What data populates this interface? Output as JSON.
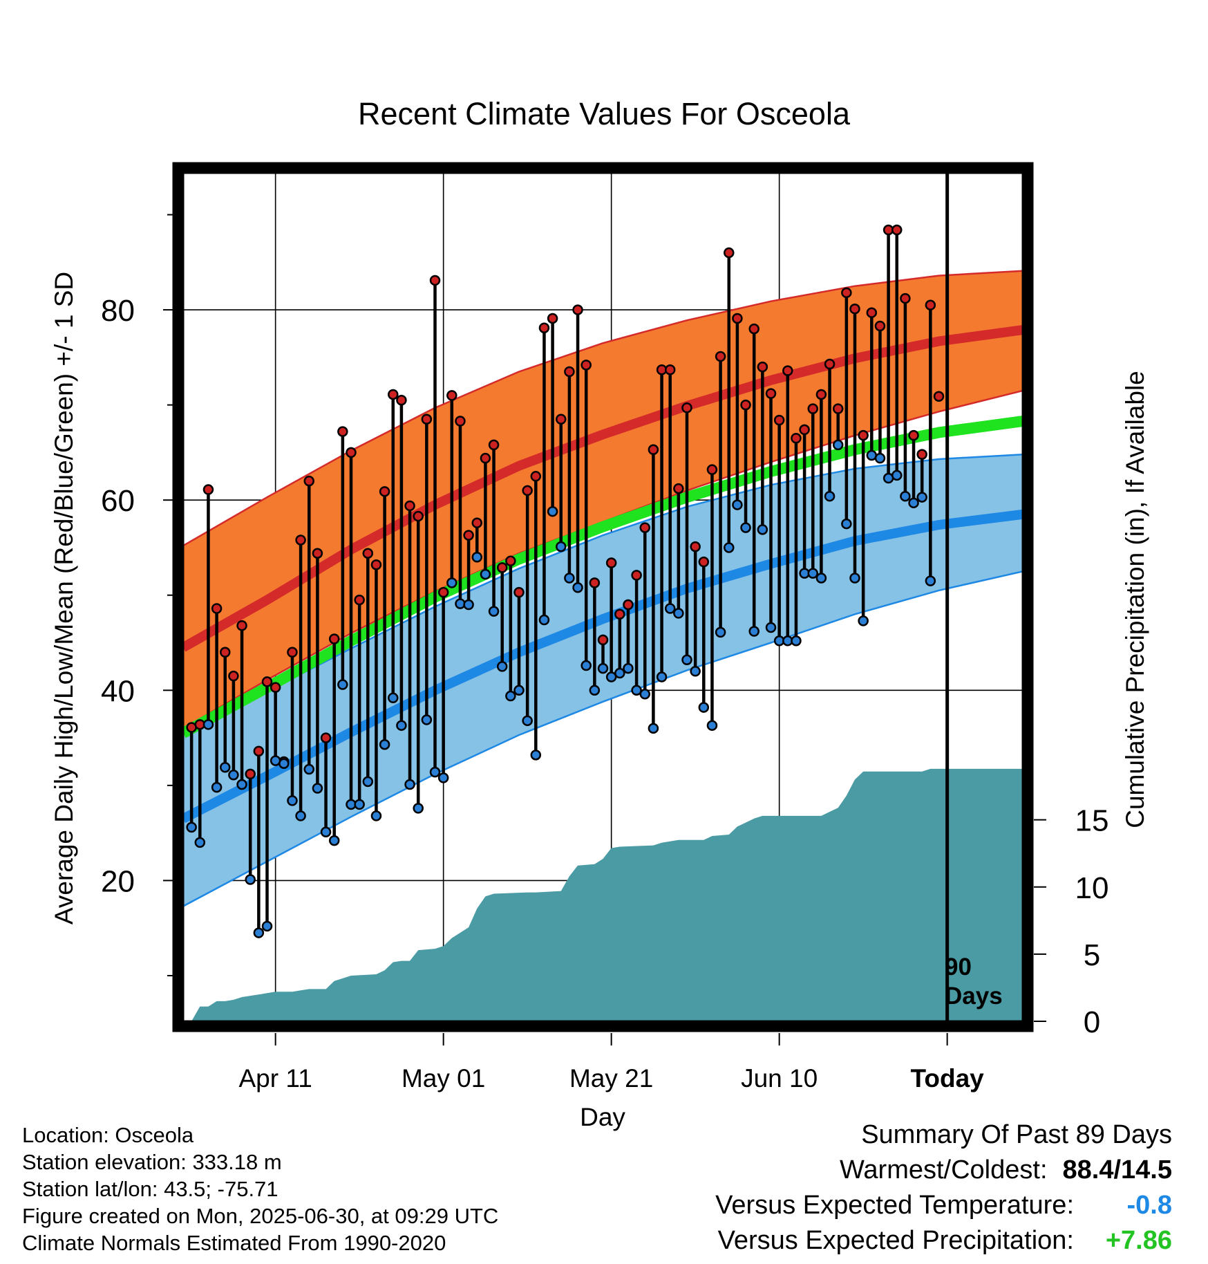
{
  "colors": {
    "high_band": "#f47a30",
    "high_line": "#d42a2a",
    "low_band": "#86c1e6",
    "low_line": "#1e88e5",
    "band_edge_high": "#d42a2a",
    "band_edge_low": "#1e88e5",
    "mean_line": "#1ee31e",
    "precip_fill": "#4a9ba4",
    "high_dot": "#cc2222",
    "low_dot": "#2b7fd4",
    "precip_value_color": "#22c322",
    "temp_value_color": "#1e88e5"
  },
  "chart_data": {
    "type": "line",
    "title": "Recent Climate Values For Osceola",
    "xlabel": "Day",
    "ylabel": "Average Daily High/Low/Mean (Red/Blue/Green) +/- 1 SD",
    "ylabel_right": "Cumulative Precipitation (in), If Available",
    "x_tick_labels": [
      {
        "label": "Apr 11",
        "day": 11
      },
      {
        "label": "May 01",
        "day": 31
      },
      {
        "label": "May 21",
        "day": 51
      },
      {
        "label": "Jun 10",
        "day": 71
      },
      {
        "label": "Today",
        "day": 91
      }
    ],
    "x_range": [
      0,
      100
    ],
    "today_day": 91,
    "today_annotation": [
      "90",
      "Days"
    ],
    "y_range": [
      5.2,
      94.4
    ],
    "y_ticks": [
      20,
      40,
      60,
      80
    ],
    "y_tick_labels": [
      "20",
      "40",
      "60",
      "80"
    ],
    "y_minor_ticks": [
      10,
      30,
      50,
      70,
      90
    ],
    "y2_range": [
      0,
      19
    ],
    "y2_ticks": [
      0,
      5,
      10,
      15
    ],
    "y2_tick_labels": [
      "0",
      "5",
      "10",
      "15"
    ],
    "normals": {
      "days": [
        0,
        10,
        20,
        30,
        40,
        50,
        60,
        70,
        80,
        90,
        100
      ],
      "high_mean": [
        44.5,
        49.5,
        54.8,
        59.5,
        63.6,
        66.9,
        69.9,
        72.6,
        74.9,
        76.7,
        77.9
      ],
      "high_upper": [
        55.2,
        60.3,
        65.2,
        69.7,
        73.5,
        76.5,
        78.9,
        80.9,
        82.5,
        83.6,
        84.1
      ],
      "high_lower": [
        36.0,
        41.1,
        46.0,
        50.4,
        54.4,
        57.7,
        61.0,
        64.0,
        66.8,
        69.3,
        71.5
      ],
      "low_mean": [
        26.5,
        31.0,
        35.6,
        40.0,
        44.0,
        47.5,
        50.7,
        53.3,
        55.7,
        57.4,
        58.5
      ],
      "low_upper": [
        35.6,
        39.9,
        44.4,
        48.8,
        52.8,
        56.3,
        59.3,
        61.6,
        63.3,
        64.3,
        64.8
      ],
      "low_lower": [
        17.3,
        22.0,
        26.7,
        31.2,
        35.3,
        38.8,
        42.1,
        45.0,
        48.0,
        50.5,
        52.5
      ],
      "mean_temp": [
        35.5,
        40.3,
        45.2,
        49.8,
        53.8,
        57.2,
        60.3,
        63.0,
        65.3,
        67.1,
        68.3
      ]
    },
    "series": [
      {
        "name": "High",
        "values": [
          36.1,
          36.4,
          61.1,
          48.6,
          44.0,
          41.5,
          46.8,
          31.2,
          33.6,
          40.9,
          40.3,
          32.5,
          44.0,
          55.8,
          62.0,
          54.4,
          35.0,
          45.4,
          67.2,
          65.0,
          49.5,
          54.4,
          53.2,
          60.9,
          71.1,
          70.5,
          59.4,
          58.3,
          68.5,
          83.1,
          50.3,
          71.0,
          68.3,
          56.3,
          57.6,
          64.4,
          65.8,
          52.9,
          53.6,
          50.3,
          61.0,
          62.5,
          78.1,
          79.1,
          68.5,
          73.5,
          80.0,
          74.2,
          51.3,
          45.3,
          53.4,
          48.0,
          49.0,
          52.1,
          57.1,
          65.3,
          73.7,
          73.7,
          61.2,
          69.7,
          55.1,
          53.5,
          63.2,
          75.1,
          86.0,
          79.1,
          70.0,
          78.0,
          74.0,
          71.2,
          68.4,
          73.6,
          66.5,
          67.4,
          69.6,
          71.1,
          74.3,
          69.6,
          81.8,
          80.1,
          66.8,
          79.7,
          78.3,
          88.4,
          88.4,
          81.2,
          66.8,
          64.8,
          80.5,
          70.9
        ],
        "color": "#cc2222"
      },
      {
        "name": "Low",
        "values": [
          25.6,
          24.0,
          36.4,
          29.8,
          31.9,
          31.1,
          30.1,
          20.1,
          14.5,
          15.2,
          32.6,
          32.3,
          28.4,
          26.8,
          31.7,
          29.7,
          25.1,
          24.2,
          40.6,
          28.0,
          28.0,
          30.4,
          26.8,
          34.3,
          39.2,
          36.3,
          30.1,
          27.6,
          36.9,
          31.4,
          30.8,
          51.3,
          49.1,
          49.0,
          54.0,
          52.2,
          48.3,
          42.5,
          39.4,
          40.0,
          36.8,
          33.2,
          47.4,
          58.8,
          55.1,
          51.8,
          50.8,
          42.6,
          40.0,
          42.3,
          41.4,
          41.8,
          42.3,
          40.0,
          39.6,
          36.0,
          41.4,
          48.6,
          48.1,
          43.2,
          42.0,
          38.2,
          36.3,
          46.1,
          55.0,
          59.5,
          57.1,
          46.2,
          56.9,
          46.6,
          45.2,
          45.2,
          45.2,
          52.3,
          52.3,
          51.8,
          60.4,
          65.8,
          57.5,
          51.8,
          47.3,
          64.7,
          64.4,
          62.3,
          62.6,
          60.4,
          59.7,
          60.3,
          51.5
        ],
        "color": "#2b7fd4"
      },
      {
        "name": "Cumulative Precipitation",
        "points": [
          [
            1,
            0.0
          ],
          [
            2,
            1.1
          ],
          [
            3,
            1.1
          ],
          [
            4,
            1.5
          ],
          [
            5,
            1.5
          ],
          [
            6,
            1.6
          ],
          [
            7,
            1.8
          ],
          [
            8,
            1.9
          ],
          [
            9,
            2.0
          ],
          [
            10,
            2.1
          ],
          [
            11,
            2.2
          ],
          [
            13,
            2.2
          ],
          [
            14,
            2.3
          ],
          [
            15,
            2.4
          ],
          [
            17,
            2.4
          ],
          [
            18,
            3.0
          ],
          [
            19,
            3.2
          ],
          [
            20,
            3.4
          ],
          [
            23,
            3.5
          ],
          [
            24,
            3.8
          ],
          [
            25,
            4.4
          ],
          [
            26,
            4.5
          ],
          [
            27,
            4.5
          ],
          [
            28,
            5.3
          ],
          [
            30,
            5.4
          ],
          [
            31,
            5.6
          ],
          [
            32,
            6.2
          ],
          [
            34,
            7.0
          ],
          [
            35,
            8.4
          ],
          [
            36,
            9.3
          ],
          [
            37,
            9.5
          ],
          [
            41,
            9.6
          ],
          [
            42,
            9.6
          ],
          [
            45,
            9.7
          ],
          [
            46,
            10.8
          ],
          [
            47,
            11.6
          ],
          [
            49,
            11.7
          ],
          [
            50,
            12.1
          ],
          [
            51,
            12.9
          ],
          [
            52,
            13.0
          ],
          [
            56,
            13.1
          ],
          [
            57,
            13.3
          ],
          [
            58,
            13.4
          ],
          [
            59,
            13.5
          ],
          [
            62,
            13.5
          ],
          [
            63,
            13.8
          ],
          [
            65,
            13.9
          ],
          [
            66,
            14.5
          ],
          [
            67,
            14.8
          ],
          [
            68,
            15.1
          ],
          [
            69,
            15.3
          ],
          [
            71,
            15.3
          ],
          [
            76,
            15.3
          ],
          [
            77,
            15.6
          ],
          [
            78,
            15.9
          ],
          [
            79,
            16.8
          ],
          [
            80,
            18.0
          ],
          [
            81,
            18.6
          ],
          [
            88,
            18.6
          ],
          [
            89,
            18.8
          ],
          [
            100,
            18.8
          ]
        ],
        "color": "#4a9ba4"
      }
    ]
  },
  "footer": {
    "location": "Location: Osceola",
    "elevation": "Station elevation: 333.18 m",
    "latlon": "Station lat/lon: 43.5; -75.71",
    "created": "Figure created on Mon, 2025-06-30, at 09:29 UTC",
    "normals": "Climate Normals Estimated From 1990-2020"
  },
  "summary": {
    "title": "Summary Of Past 89 Days",
    "warmest_coldest_label": "Warmest/Coldest:",
    "warmest_coldest_value": "88.4/14.5",
    "temp_label": "Versus Expected Temperature:",
    "temp_value": "-0.8",
    "precip_label": "Versus Expected Precipitation:",
    "precip_value": "+7.86"
  }
}
